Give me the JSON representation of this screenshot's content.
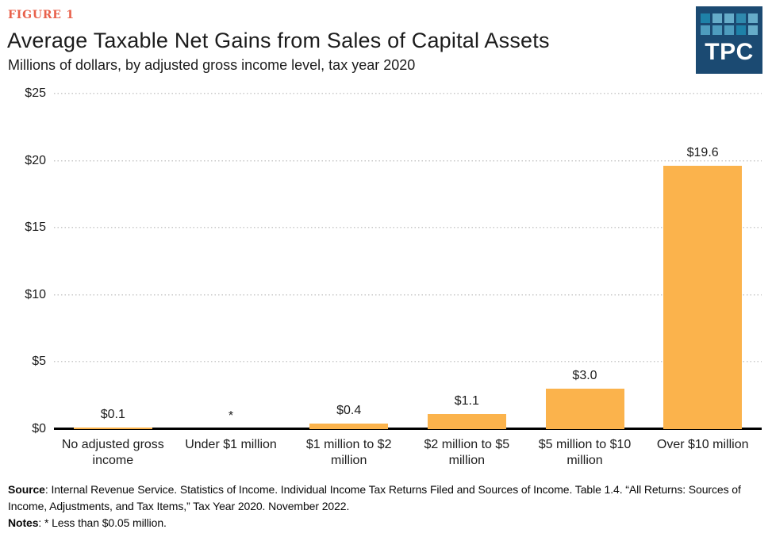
{
  "header": {
    "figure_label": "FIGURE 1",
    "title": "Average Taxable Net Gains from Sales of Capital Assets",
    "subtitle": "Millions of dollars, by adjusted gross income level, tax year 2020"
  },
  "logo": {
    "text": "TPC",
    "bg_color": "#1b4a72",
    "grid_rows": [
      [
        "#1e81a8",
        "#66acc9",
        "#66acc9",
        "#2f89ad",
        "#66acc9"
      ],
      [
        "#4e9cbe",
        "#4e9cbe",
        "#4e9cbe",
        "#1e81a8",
        "#66acc9"
      ]
    ]
  },
  "chart_data": {
    "type": "bar",
    "title": "Average Taxable Net Gains from Sales of Capital Assets",
    "subtitle": "Millions of dollars, by adjusted gross income level, tax year 2020",
    "categories": [
      "No adjusted gross income",
      "Under $1 million",
      "$1 million to $2 million",
      "$2 million to $5 million",
      "$5 million to $10 million",
      "Over $10 million"
    ],
    "values": [
      0.1,
      0,
      0.4,
      1.1,
      3.0,
      19.6
    ],
    "value_labels": [
      "$0.1",
      "*",
      "$0.4",
      "$1.1",
      "$3.0",
      "$19.6"
    ],
    "xlabel": "",
    "ylabel": "Millions of dollars",
    "ylim": [
      0,
      25
    ],
    "y_tick_values": [
      0,
      5,
      10,
      15,
      20,
      25
    ],
    "y_tick_labels": [
      "$0",
      "$5",
      "$10",
      "$15",
      "$20",
      "$25"
    ],
    "grid": "horizontal-dotted",
    "legend": "none",
    "bar_color": "#fbb34c"
  },
  "footer": {
    "source_label": "Source",
    "source_text": ": Internal Revenue Service. Statistics of Income. Individual Income Tax Returns Filed and Sources of Income. Table 1.4. “All Returns: Sources of Income, Adjustments, and Tax Items,” Tax Year 2020. November 2022.",
    "notes_label": "Notes",
    "notes_text": ": * Less than $0.05 million."
  }
}
